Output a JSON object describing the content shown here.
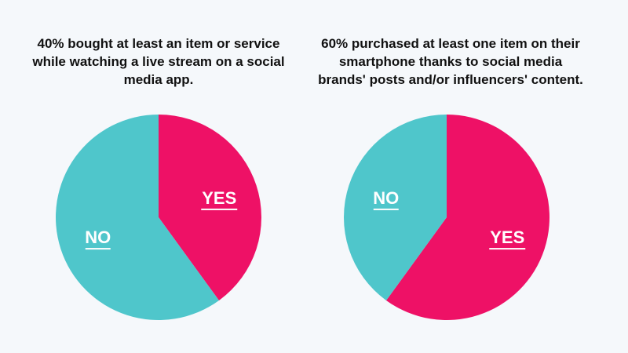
{
  "chart_data": [
    {
      "type": "pie",
      "title": "40% bought at least an item or service while watching a live stream on a social media app.",
      "slices": [
        {
          "label": "YES",
          "value": 40,
          "color": "#ee1166"
        },
        {
          "label": "NO",
          "value": 60,
          "color": "#4fc6cb"
        }
      ]
    },
    {
      "type": "pie",
      "title": "60% purchased at least one item on their smartphone thanks to social media brands' posts and/or influencers' content.",
      "slices": [
        {
          "label": "YES",
          "value": 60,
          "color": "#ee1166"
        },
        {
          "label": "NO",
          "value": 40,
          "color": "#4fc6cb"
        }
      ]
    }
  ]
}
